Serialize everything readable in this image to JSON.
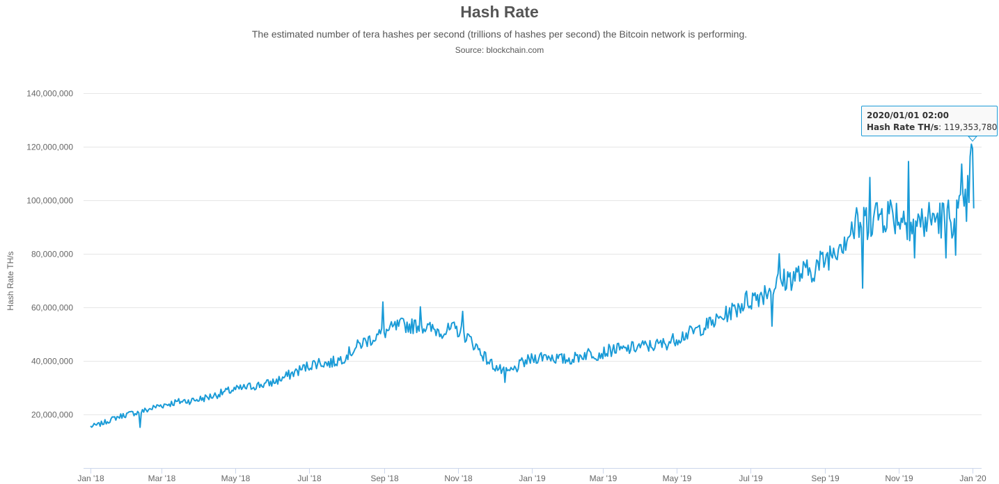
{
  "chart_data": {
    "type": "line",
    "title": "Hash Rate",
    "subtitle": "The estimated number of tera hashes per second (trillions of hashes per second) the Bitcoin network is performing.",
    "source": "Source: blockchain.com",
    "ylabel": "Hash Rate TH/s",
    "xlabel": "",
    "ylim": [
      0,
      140000000
    ],
    "y_ticks": [
      {
        "value": 20000000,
        "label": "20,000,000"
      },
      {
        "value": 40000000,
        "label": "40,000,000"
      },
      {
        "value": 60000000,
        "label": "60,000,000"
      },
      {
        "value": 80000000,
        "label": "80,000,000"
      },
      {
        "value": 100000000,
        "label": "100,000,000"
      },
      {
        "value": 120000000,
        "label": "120,000,000"
      },
      {
        "value": 140000000,
        "label": "140,000,000"
      }
    ],
    "xlim": [
      "2018-01-01",
      "2020-01-01"
    ],
    "x_ticks": [
      {
        "date": "2018-01-01",
        "label": "Jan '18"
      },
      {
        "date": "2018-03-01",
        "label": "Mar '18"
      },
      {
        "date": "2018-05-01",
        "label": "May '18"
      },
      {
        "date": "2018-07-01",
        "label": "Jul '18"
      },
      {
        "date": "2018-09-01",
        "label": "Sep '18"
      },
      {
        "date": "2018-11-01",
        "label": "Nov '18"
      },
      {
        "date": "2019-01-01",
        "label": "Jan '19"
      },
      {
        "date": "2019-03-01",
        "label": "Mar '19"
      },
      {
        "date": "2019-05-01",
        "label": "May '19"
      },
      {
        "date": "2019-07-01",
        "label": "Jul '19"
      },
      {
        "date": "2019-09-01",
        "label": "Sep '19"
      },
      {
        "date": "2019-11-01",
        "label": "Nov '19"
      },
      {
        "date": "2020-01-01",
        "label": "Jan '20"
      }
    ],
    "grid": true,
    "legend": "none",
    "color": "#1a9bd7",
    "series": [
      {
        "name": "Hash Rate TH/s",
        "points": [
          [
            "2018-01-01",
            15500000
          ],
          [
            "2018-01-08",
            16200000
          ],
          [
            "2018-01-15",
            17500000
          ],
          [
            "2018-01-22",
            18800000
          ],
          [
            "2018-01-29",
            19800000
          ],
          [
            "2018-02-05",
            20500000
          ],
          [
            "2018-02-12",
            21000000
          ],
          [
            "2018-02-19",
            22000000
          ],
          [
            "2018-02-26",
            23200000
          ],
          [
            "2018-03-05",
            23800000
          ],
          [
            "2018-03-12",
            24500000
          ],
          [
            "2018-03-19",
            25000000
          ],
          [
            "2018-03-26",
            25200000
          ],
          [
            "2018-04-02",
            25800000
          ],
          [
            "2018-04-09",
            26500000
          ],
          [
            "2018-04-16",
            27500000
          ],
          [
            "2018-04-23",
            28500000
          ],
          [
            "2018-04-30",
            29200000
          ],
          [
            "2018-05-07",
            29800000
          ],
          [
            "2018-05-14",
            30500000
          ],
          [
            "2018-05-21",
            31000000
          ],
          [
            "2018-05-28",
            31500000
          ],
          [
            "2018-06-04",
            32500000
          ],
          [
            "2018-06-11",
            34000000
          ],
          [
            "2018-06-18",
            35500000
          ],
          [
            "2018-06-25",
            37000000
          ],
          [
            "2018-07-02",
            38500000
          ],
          [
            "2018-07-09",
            39500000
          ],
          [
            "2018-07-16",
            39000000
          ],
          [
            "2018-07-23",
            39800000
          ],
          [
            "2018-07-30",
            41500000
          ],
          [
            "2018-08-06",
            44000000
          ],
          [
            "2018-08-13",
            46500000
          ],
          [
            "2018-08-20",
            48000000
          ],
          [
            "2018-08-27",
            49500000
          ],
          [
            "2018-09-03",
            51000000
          ],
          [
            "2018-09-10",
            52500000
          ],
          [
            "2018-09-17",
            53500000
          ],
          [
            "2018-09-24",
            53000000
          ],
          [
            "2018-10-01",
            53500000
          ],
          [
            "2018-10-08",
            52000000
          ],
          [
            "2018-10-15",
            51500000
          ],
          [
            "2018-10-22",
            51000000
          ],
          [
            "2018-10-29",
            52000000
          ],
          [
            "2018-11-05",
            50500000
          ],
          [
            "2018-11-12",
            47500000
          ],
          [
            "2018-11-19",
            44000000
          ],
          [
            "2018-11-26",
            40000000
          ],
          [
            "2018-12-03",
            37500000
          ],
          [
            "2018-12-10",
            35500000
          ],
          [
            "2018-12-17",
            36500000
          ],
          [
            "2018-12-24",
            39000000
          ],
          [
            "2018-12-31",
            40500000
          ],
          [
            "2019-01-07",
            41500000
          ],
          [
            "2019-01-14",
            42000000
          ],
          [
            "2019-01-21",
            41000000
          ],
          [
            "2019-01-28",
            40500000
          ],
          [
            "2019-02-04",
            40800000
          ],
          [
            "2019-02-11",
            42000000
          ],
          [
            "2019-02-18",
            43000000
          ],
          [
            "2019-02-25",
            42500000
          ],
          [
            "2019-03-04",
            43500000
          ],
          [
            "2019-03-11",
            44500000
          ],
          [
            "2019-03-18",
            44000000
          ],
          [
            "2019-03-25",
            44800000
          ],
          [
            "2019-04-01",
            45500000
          ],
          [
            "2019-04-08",
            45500000
          ],
          [
            "2019-04-15",
            46000000
          ],
          [
            "2019-04-22",
            46500000
          ],
          [
            "2019-04-29",
            48000000
          ],
          [
            "2019-05-06",
            49500000
          ],
          [
            "2019-05-13",
            50500000
          ],
          [
            "2019-05-20",
            52000000
          ],
          [
            "2019-05-27",
            53500000
          ],
          [
            "2019-06-03",
            55000000
          ],
          [
            "2019-06-10",
            57000000
          ],
          [
            "2019-06-17",
            59000000
          ],
          [
            "2019-06-24",
            61500000
          ],
          [
            "2019-07-01",
            63000000
          ],
          [
            "2019-07-08",
            64500000
          ],
          [
            "2019-07-15",
            66500000
          ],
          [
            "2019-07-22",
            68500000
          ],
          [
            "2019-07-29",
            70000000
          ],
          [
            "2019-08-05",
            71500000
          ],
          [
            "2019-08-12",
            72500000
          ],
          [
            "2019-08-19",
            73500000
          ],
          [
            "2019-08-26",
            75500000
          ],
          [
            "2019-09-02",
            78500000
          ],
          [
            "2019-09-09",
            82000000
          ],
          [
            "2019-09-16",
            86000000
          ],
          [
            "2019-09-23",
            89000000
          ],
          [
            "2019-09-30",
            91000000
          ],
          [
            "2019-10-07",
            93000000
          ],
          [
            "2019-10-14",
            94500000
          ],
          [
            "2019-10-21",
            95500000
          ],
          [
            "2019-10-28",
            95000000
          ],
          [
            "2019-11-04",
            93500000
          ],
          [
            "2019-11-11",
            92500000
          ],
          [
            "2019-11-18",
            91500000
          ],
          [
            "2019-11-25",
            92500000
          ],
          [
            "2019-12-02",
            93500000
          ],
          [
            "2019-12-09",
            93000000
          ],
          [
            "2019-12-16",
            94000000
          ],
          [
            "2019-12-23",
            95500000
          ],
          [
            "2019-12-27",
            97000000
          ],
          [
            "2020-01-01",
            119353780
          ],
          [
            "2020-01-02",
            97000000
          ]
        ],
        "notable_points": [
          [
            "2018-02-11",
            15200000
          ],
          [
            "2018-08-31",
            62000000
          ],
          [
            "2018-10-01",
            60200000
          ],
          [
            "2018-11-05",
            58500000
          ],
          [
            "2018-12-10",
            32000000
          ],
          [
            "2019-07-19",
            53000000
          ],
          [
            "2019-07-25",
            80000000
          ],
          [
            "2019-10-02",
            67200000
          ],
          [
            "2019-10-08",
            108500000
          ],
          [
            "2019-11-09",
            114500000
          ],
          [
            "2019-11-14",
            78500000
          ],
          [
            "2019-12-10",
            78500000
          ],
          [
            "2019-12-18",
            79500000
          ],
          [
            "2019-12-23",
            113500000
          ],
          [
            "2020-01-01",
            119353780
          ]
        ]
      }
    ],
    "tooltip": {
      "date": "2020/01/01 02:00",
      "series_label": "Hash Rate TH/s",
      "value": "119,353,780"
    }
  }
}
